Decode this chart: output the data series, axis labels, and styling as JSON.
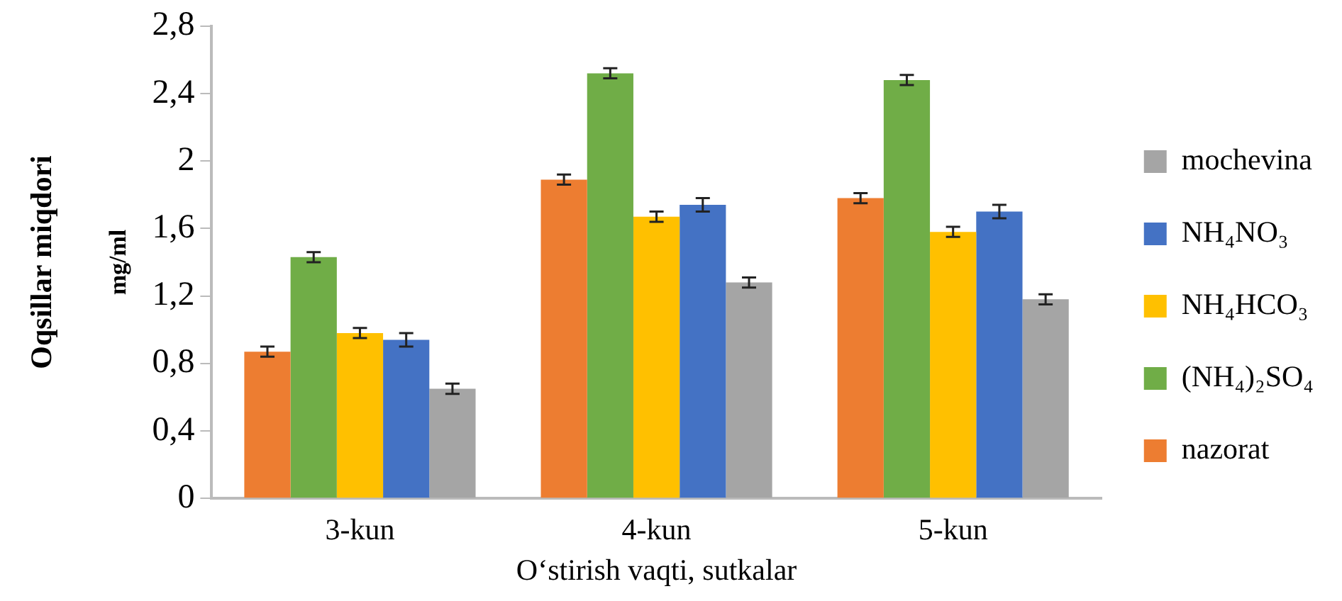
{
  "chart_data": {
    "type": "bar",
    "xlabel": "O‘stirish vaqti, sutkalar",
    "ylabel": "Oqsillar miqdori",
    "annotations": [
      "mg/ml"
    ],
    "categories": [
      "3-kun",
      "4-kun",
      "5-kun"
    ],
    "series": [
      {
        "name": "nazorat",
        "color": "#ed7d31",
        "values": [
          0.87,
          1.89,
          1.78
        ],
        "errors": [
          0.03,
          0.03,
          0.03
        ]
      },
      {
        "name": "(NH₄)₂SO₄",
        "color": "#70ad47",
        "values": [
          1.43,
          2.52,
          2.48
        ],
        "errors": [
          0.03,
          0.03,
          0.03
        ]
      },
      {
        "name": "NH₄HCO₃",
        "color": "#ffc000",
        "values": [
          0.98,
          1.67,
          1.58
        ],
        "errors": [
          0.03,
          0.03,
          0.03
        ]
      },
      {
        "name": "NH₄NO₃",
        "color": "#4472c4",
        "values": [
          0.94,
          1.74,
          1.7
        ],
        "errors": [
          0.04,
          0.04,
          0.04
        ]
      },
      {
        "name": "mochevina",
        "color": "#a5a5a5",
        "values": [
          0.65,
          1.28,
          1.18
        ],
        "errors": [
          0.03,
          0.03,
          0.03
        ]
      }
    ],
    "ylim": [
      0,
      2.8
    ],
    "yticks": [
      0,
      {
        "value": 0.4,
        "label": "0,4"
      },
      {
        "value": 0.8,
        "label": "0,8"
      },
      {
        "value": 1.2,
        "label": "1,2"
      },
      {
        "value": 1.6,
        "label": "1,6"
      },
      2,
      {
        "value": 2.4,
        "label": "2,4"
      },
      {
        "value": 2.8,
        "label": "2,8"
      }
    ],
    "grid": false,
    "legend": "right"
  }
}
